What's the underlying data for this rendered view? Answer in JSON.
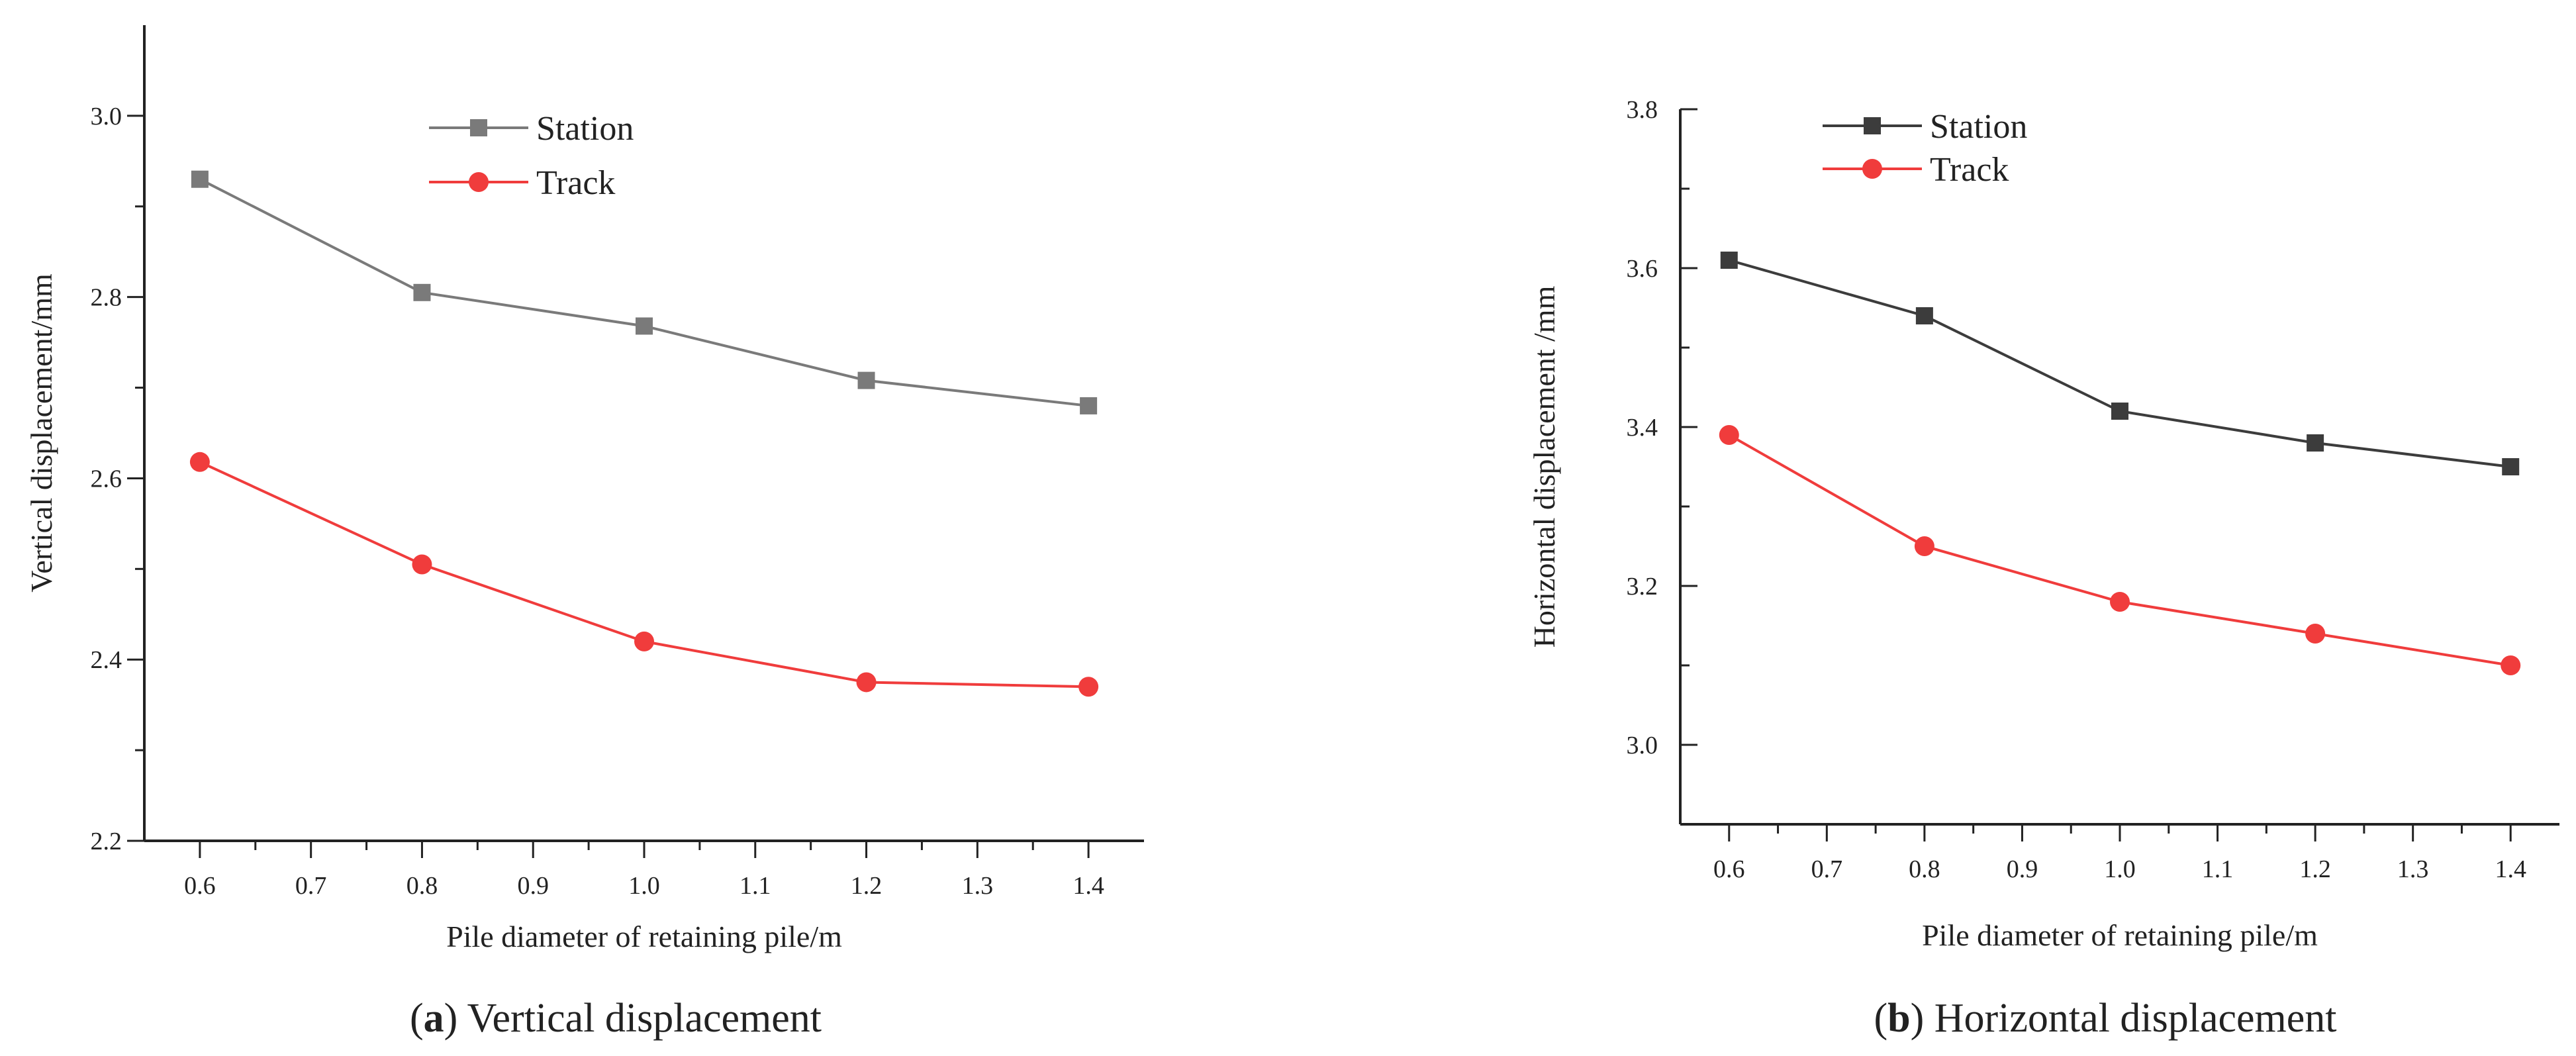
{
  "chart_data": [
    {
      "type": "line",
      "panel": "a",
      "caption_letter": "a",
      "caption_text": "Vertical displacement",
      "xlabel": "Pile diameter of retaining pile/m",
      "ylabel": "Vertical displacement/mm",
      "xlim": [
        0.55,
        1.45
      ],
      "ylim": [
        2.2,
        3.1
      ],
      "xticks": [
        "0.6",
        "0.7",
        "0.8",
        "0.9",
        "1.0",
        "1.1",
        "1.2",
        "1.3",
        "1.4"
      ],
      "yticks": [
        "2.2",
        "2.4",
        "2.6",
        "2.8",
        "3.0"
      ],
      "x": [
        0.6,
        0.8,
        1.0,
        1.2,
        1.4
      ],
      "series": [
        {
          "name": "Station",
          "color": "#7a7a7a",
          "marker": "square",
          "values": [
            2.93,
            2.805,
            2.768,
            2.708,
            2.68
          ]
        },
        {
          "name": "Track",
          "color": "#f03c3c",
          "marker": "circle",
          "values": [
            2.618,
            2.505,
            2.42,
            2.375,
            2.37
          ]
        }
      ],
      "legend": "top-center"
    },
    {
      "type": "line",
      "panel": "b",
      "caption_letter": "b",
      "caption_text": "Horizontal displacement",
      "xlabel": "Pile diameter of retaining pile/m",
      "ylabel": "Horizontal displacement /mm",
      "xlim": [
        0.55,
        1.45
      ],
      "ylim": [
        2.9,
        3.8
      ],
      "xticks": [
        "0.6",
        "0.7",
        "0.8",
        "0.9",
        "1.0",
        "1.1",
        "1.2",
        "1.3",
        "1.4"
      ],
      "yticks": [
        "3.0",
        "3.2",
        "3.4",
        "3.6",
        "3.8"
      ],
      "x": [
        0.6,
        0.8,
        1.0,
        1.2,
        1.4
      ],
      "series": [
        {
          "name": "Station",
          "color": "#3c3c3c",
          "marker": "square",
          "values": [
            3.61,
            3.54,
            3.42,
            3.38,
            3.35
          ]
        },
        {
          "name": "Track",
          "color": "#f03c3c",
          "marker": "circle",
          "values": [
            3.39,
            3.25,
            3.18,
            3.14,
            3.1
          ]
        }
      ],
      "legend": "top-left"
    }
  ]
}
